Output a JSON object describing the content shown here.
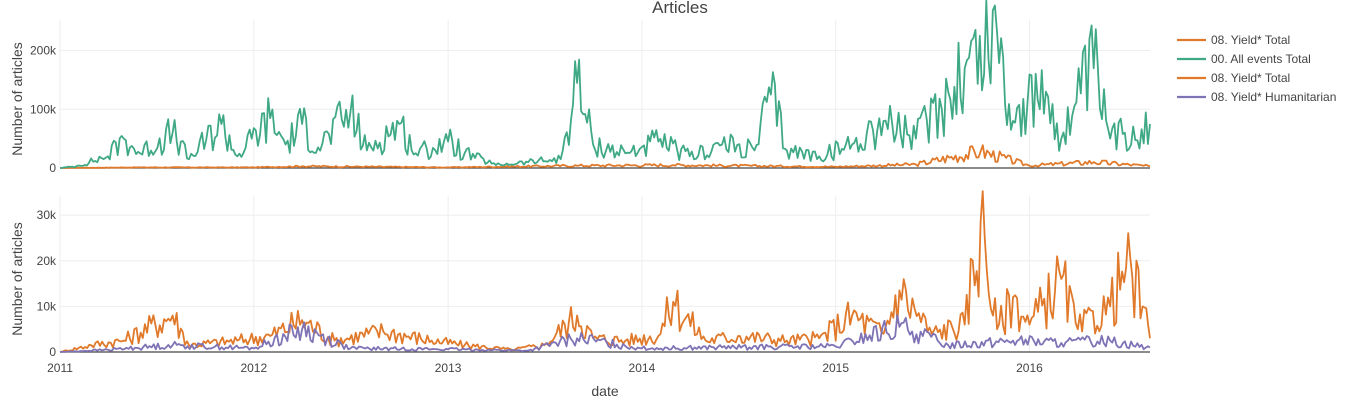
{
  "colors": {
    "green": "#3fa985",
    "orange": "#e0792a",
    "purple": "#7f73b5",
    "grid": "#eeeeee",
    "text": "#444444"
  },
  "chart_data": [
    {
      "type": "line",
      "title": "Articles",
      "xlabel": "",
      "ylabel": "Number of articles",
      "x_range": [
        "2011-01-01",
        "2016-08-15"
      ],
      "ylim": [
        0,
        235000
      ],
      "y_ticks": [
        0,
        100000,
        200000
      ],
      "y_tick_labels": [
        "0",
        "100k",
        "200k"
      ],
      "grid": true,
      "legend_position": "top-right",
      "series": [
        {
          "name": "08. Yield*  Total",
          "color": "#e0792a",
          "points": [
            [
              "2011-01-01",
              0
            ],
            [
              "2011-06-01",
              1000
            ],
            [
              "2012-01-01",
              1000
            ],
            [
              "2012-04-01",
              3000
            ],
            [
              "2013-01-01",
              1000
            ],
            [
              "2013-09-01",
              4000
            ],
            [
              "2014-03-01",
              5000
            ],
            [
              "2015-01-01",
              2000
            ],
            [
              "2015-06-01",
              6000
            ],
            [
              "2015-10-01",
              28000
            ],
            [
              "2016-01-01",
              4000
            ],
            [
              "2016-05-01",
              10000
            ],
            [
              "2016-08-15",
              3000
            ]
          ]
        },
        {
          "name": "00. All events Total",
          "color": "#3fa985",
          "points": [
            [
              "2011-01-01",
              0
            ],
            [
              "2011-02-01",
              3000
            ],
            [
              "2011-04-01",
              20000
            ],
            [
              "2011-05-01",
              50000
            ],
            [
              "2011-06-01",
              25000
            ],
            [
              "2011-08-01",
              60000
            ],
            [
              "2011-09-01",
              15000
            ],
            [
              "2011-11-01",
              75000
            ],
            [
              "2011-12-01",
              20000
            ],
            [
              "2012-02-01",
              85000
            ],
            [
              "2012-03-01",
              40000
            ],
            [
              "2012-04-01",
              75000
            ],
            [
              "2012-05-01",
              35000
            ],
            [
              "2012-07-01",
              95000
            ],
            [
              "2012-08-01",
              30000
            ],
            [
              "2012-10-01",
              75000
            ],
            [
              "2012-11-01",
              25000
            ],
            [
              "2013-01-01",
              45000
            ],
            [
              "2013-02-01",
              25000
            ],
            [
              "2013-04-01",
              5000
            ],
            [
              "2013-06-01",
              10000
            ],
            [
              "2013-08-01",
              15000
            ],
            [
              "2013-09-01",
              145000
            ],
            [
              "2013-10-01",
              40000
            ],
            [
              "2013-12-01",
              25000
            ],
            [
              "2014-02-01",
              45000
            ],
            [
              "2014-04-01",
              20000
            ],
            [
              "2014-06-01",
              40000
            ],
            [
              "2014-08-01",
              30000
            ],
            [
              "2014-09-01",
              125000
            ],
            [
              "2014-10-01",
              30000
            ],
            [
              "2014-12-01",
              20000
            ],
            [
              "2015-02-01",
              40000
            ],
            [
              "2015-04-01",
              80000
            ],
            [
              "2015-06-01",
              50000
            ],
            [
              "2015-08-01",
              130000
            ],
            [
              "2015-09-01",
              170000
            ],
            [
              "2015-11-01",
              230000
            ],
            [
              "2015-12-01",
              80000
            ],
            [
              "2016-02-01",
              130000
            ],
            [
              "2016-03-01",
              50000
            ],
            [
              "2016-05-01",
              170000
            ],
            [
              "2016-06-01",
              50000
            ],
            [
              "2016-08-15",
              75000
            ]
          ]
        }
      ]
    },
    {
      "type": "line",
      "title": "",
      "xlabel": "date",
      "ylabel": "Number of articles",
      "x_range": [
        "2011-01-01",
        "2016-08-15"
      ],
      "x_ticks": [
        "2011-01-01",
        "2012-01-01",
        "2013-01-01",
        "2014-01-01",
        "2015-01-01",
        "2016-01-01"
      ],
      "x_tick_labels": [
        "2011",
        "2012",
        "2013",
        "2014",
        "2015",
        "2016"
      ],
      "ylim": [
        0,
        32000
      ],
      "y_ticks": [
        0,
        10000,
        20000,
        30000
      ],
      "y_tick_labels": [
        "0",
        "10k",
        "20k",
        "30k"
      ],
      "grid": true,
      "series": [
        {
          "name": "08. Yield*  Total",
          "color": "#e0792a",
          "points": [
            [
              "2011-01-01",
              0
            ],
            [
              "2011-03-01",
              1500
            ],
            [
              "2011-05-01",
              2500
            ],
            [
              "2011-08-01",
              8000
            ],
            [
              "2011-09-01",
              1500
            ],
            [
              "2011-12-01",
              2500
            ],
            [
              "2012-02-01",
              3500
            ],
            [
              "2012-04-01",
              7000
            ],
            [
              "2012-06-01",
              2500
            ],
            [
              "2012-09-01",
              4500
            ],
            [
              "2012-12-01",
              2500
            ],
            [
              "2013-02-01",
              1500
            ],
            [
              "2013-05-01",
              500
            ],
            [
              "2013-07-01",
              1500
            ],
            [
              "2013-09-01",
              8000
            ],
            [
              "2013-10-01",
              3000
            ],
            [
              "2013-12-01",
              2500
            ],
            [
              "2014-02-01",
              3500
            ],
            [
              "2014-03-01",
              11000
            ],
            [
              "2014-05-01",
              2500
            ],
            [
              "2014-07-01",
              3500
            ],
            [
              "2014-10-01",
              2500
            ],
            [
              "2014-12-01",
              3000
            ],
            [
              "2015-02-01",
              8000
            ],
            [
              "2015-04-01",
              4000
            ],
            [
              "2015-05-01",
              13500
            ],
            [
              "2015-07-01",
              4000
            ],
            [
              "2015-09-01",
              6000
            ],
            [
              "2015-10-01",
              28500
            ],
            [
              "2015-11-01",
              5000
            ],
            [
              "2015-12-01",
              12000
            ],
            [
              "2016-01-01",
              6000
            ],
            [
              "2016-03-01",
              16000
            ],
            [
              "2016-04-01",
              5000
            ],
            [
              "2016-06-01",
              10000
            ],
            [
              "2016-07-01",
              18500
            ],
            [
              "2016-08-01",
              10000
            ],
            [
              "2016-08-15",
              3000
            ]
          ]
        },
        {
          "name": "08. Yield* Humanitarian",
          "color": "#7f73b5",
          "points": [
            [
              "2011-01-01",
              0
            ],
            [
              "2011-04-01",
              500
            ],
            [
              "2011-08-01",
              1500
            ],
            [
              "2012-01-01",
              800
            ],
            [
              "2012-04-01",
              5000
            ],
            [
              "2012-07-01",
              800
            ],
            [
              "2013-01-01",
              600
            ],
            [
              "2013-06-01",
              300
            ],
            [
              "2013-09-01",
              3000
            ],
            [
              "2014-01-01",
              800
            ],
            [
              "2014-06-01",
              1000
            ],
            [
              "2015-01-01",
              1200
            ],
            [
              "2015-05-01",
              5500
            ],
            [
              "2015-08-01",
              1500
            ],
            [
              "2015-12-01",
              2500
            ],
            [
              "2016-03-01",
              2000
            ],
            [
              "2016-06-01",
              2500
            ],
            [
              "2016-08-15",
              1000
            ]
          ]
        }
      ]
    }
  ]
}
